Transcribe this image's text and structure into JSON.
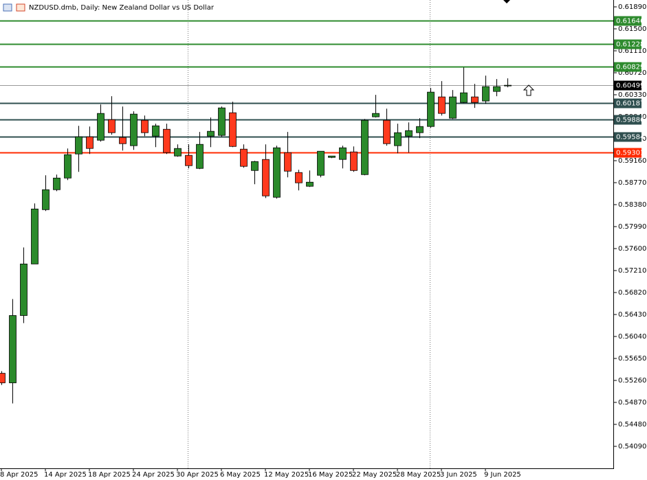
{
  "chart_data": {
    "type": "candlestick",
    "title": "NZDUSD.dmb, Daily:  New Zealand Dollar vs US Dollar",
    "categories": [
      "8 Apr 2025",
      null,
      null,
      null,
      "14 Apr 2025",
      null,
      null,
      null,
      "18 Apr 2025",
      null,
      null,
      null,
      "24 Apr 2025",
      null,
      null,
      null,
      "30 Apr 2025",
      null,
      null,
      null,
      "6 May 2025",
      null,
      null,
      null,
      "12 May 2025",
      null,
      null,
      null,
      "16 May 2025",
      null,
      null,
      null,
      "22 May 2025",
      null,
      null,
      null,
      "28 May 2025",
      null,
      null,
      null,
      "3 Jun 2025",
      null,
      null,
      null,
      "9 Jun 2025",
      null,
      null
    ],
    "open": [
      0.55387,
      0.55217,
      0.56412,
      0.57327,
      0.58291,
      0.58645,
      0.58852,
      0.59279,
      0.59584,
      0.59523,
      0.59889,
      0.59572,
      0.59426,
      0.59877,
      0.59596,
      0.59718,
      0.59243,
      0.59255,
      0.59023,
      0.59596,
      0.59609,
      0.60011,
      0.59365,
      0.58986,
      0.59182,
      0.58511,
      0.59304,
      0.5895,
      0.58706,
      0.58901,
      0.59218,
      0.59182,
      0.59316,
      0.58913,
      0.59938,
      0.59877,
      0.59426,
      0.59596,
      0.59657,
      0.59767,
      0.60292,
      0.59914,
      0.60194,
      0.60292,
      0.60219,
      0.60389,
      0.60487
    ],
    "high": [
      0.55424,
      0.56705,
      0.5762,
      0.58401,
      0.58901,
      0.58913,
      0.59377,
      0.59779,
      0.59767,
      0.60158,
      0.60304,
      0.60121,
      0.60036,
      0.59962,
      0.59816,
      0.59816,
      0.5945,
      0.5945,
      0.5967,
      0.59926,
      0.60121,
      0.60206,
      0.5945,
      0.59157,
      0.5945,
      0.59426,
      0.5967,
      0.58999,
      0.58986,
      0.59328,
      0.59243,
      0.59426,
      0.59413,
      0.59901,
      0.60328,
      0.60084,
      0.59816,
      0.5984,
      0.59914,
      0.6045,
      0.60572,
      0.60414,
      0.60816,
      0.60524,
      0.6067,
      0.60609,
      0.60621
    ],
    "low": [
      0.5518,
      0.54851,
      0.56278,
      0.57327,
      0.58267,
      0.5862,
      0.58816,
      0.58962,
      0.59279,
      0.59499,
      0.59621,
      0.5934,
      0.59352,
      0.59596,
      0.59401,
      0.59279,
      0.5923,
      0.59023,
      0.59011,
      0.59401,
      0.59584,
      0.59401,
      0.59035,
      0.58742,
      0.58498,
      0.58486,
      0.58864,
      0.58633,
      0.58694,
      0.58864,
      0.59206,
      0.59023,
      0.58962,
      0.58901,
      0.59926,
      0.59426,
      0.59291,
      0.59304,
      0.5956,
      0.59743,
      0.59962,
      0.59901,
      0.60182,
      0.60097,
      0.6017,
      0.60304,
      0.60463
    ],
    "close": [
      0.55217,
      0.56412,
      0.57327,
      0.58303,
      0.58645,
      0.58852,
      0.59267,
      0.59584,
      0.59377,
      0.59999,
      0.59657,
      0.59462,
      0.59987,
      0.59657,
      0.59779,
      0.59304,
      0.59377,
      0.59072,
      0.5945,
      0.59682,
      0.60097,
      0.59413,
      0.5906,
      0.59145,
      0.58535,
      0.59389,
      0.58974,
      0.58767,
      0.58779,
      0.59328,
      0.59243,
      0.59389,
      0.58986,
      0.59877,
      0.59999,
      0.59462,
      0.59657,
      0.59694,
      0.59767,
      0.60377,
      0.59999,
      0.60292,
      0.60365,
      0.60194,
      0.60475,
      0.60475,
      0.60499
    ],
    "up_color": "#2b8a2b",
    "down_color": "#ff3a1e",
    "levels": [
      {
        "value": 0.61646,
        "color": "#2e8b2e"
      },
      {
        "value": 0.61228,
        "color": "#2e8b2e"
      },
      {
        "value": 0.60829,
        "color": "#2e8b2e"
      },
      {
        "value": 0.60499,
        "color": "#000000"
      },
      {
        "value": 0.60187,
        "color": "#2f4f4f"
      },
      {
        "value": 0.59886,
        "color": "#2f4f4f"
      },
      {
        "value": 0.59584,
        "color": "#2f4f4f"
      },
      {
        "value": 0.59301,
        "color": "#ff2a00"
      }
    ],
    "ylim": [
      0.537,
      0.62012
    ],
    "yticks": [
      {
        "value": 0.6189,
        "label": "0.61890"
      },
      {
        "value": 0.615,
        "label": "0.61500"
      },
      {
        "value": 0.6111,
        "label": "0.61110"
      },
      {
        "value": 0.6072,
        "label": "0.60720"
      },
      {
        "value": 0.6033,
        "label": "0.60330"
      },
      {
        "value": 0.5994,
        "label": "0.59940"
      },
      {
        "value": 0.5955,
        "label": "0.59550"
      },
      {
        "value": 0.5916,
        "label": "0.59160"
      },
      {
        "value": 0.5877,
        "label": "0.58770"
      },
      {
        "value": 0.5838,
        "label": "0.58380"
      },
      {
        "value": 0.5799,
        "label": "0.57990"
      },
      {
        "value": 0.576,
        "label": "0.57600"
      },
      {
        "value": 0.5721,
        "label": "0.57210"
      },
      {
        "value": 0.5682,
        "label": "0.56820"
      },
      {
        "value": 0.5643,
        "label": "0.56430"
      },
      {
        "value": 0.5604,
        "label": "0.56040"
      },
      {
        "value": 0.5565,
        "label": "0.55650"
      },
      {
        "value": 0.5526,
        "label": "0.55260"
      },
      {
        "value": 0.5487,
        "label": "0.54870"
      },
      {
        "value": 0.5448,
        "label": "0.54480"
      },
      {
        "value": 0.5409,
        "label": "0.54090"
      }
    ]
  }
}
